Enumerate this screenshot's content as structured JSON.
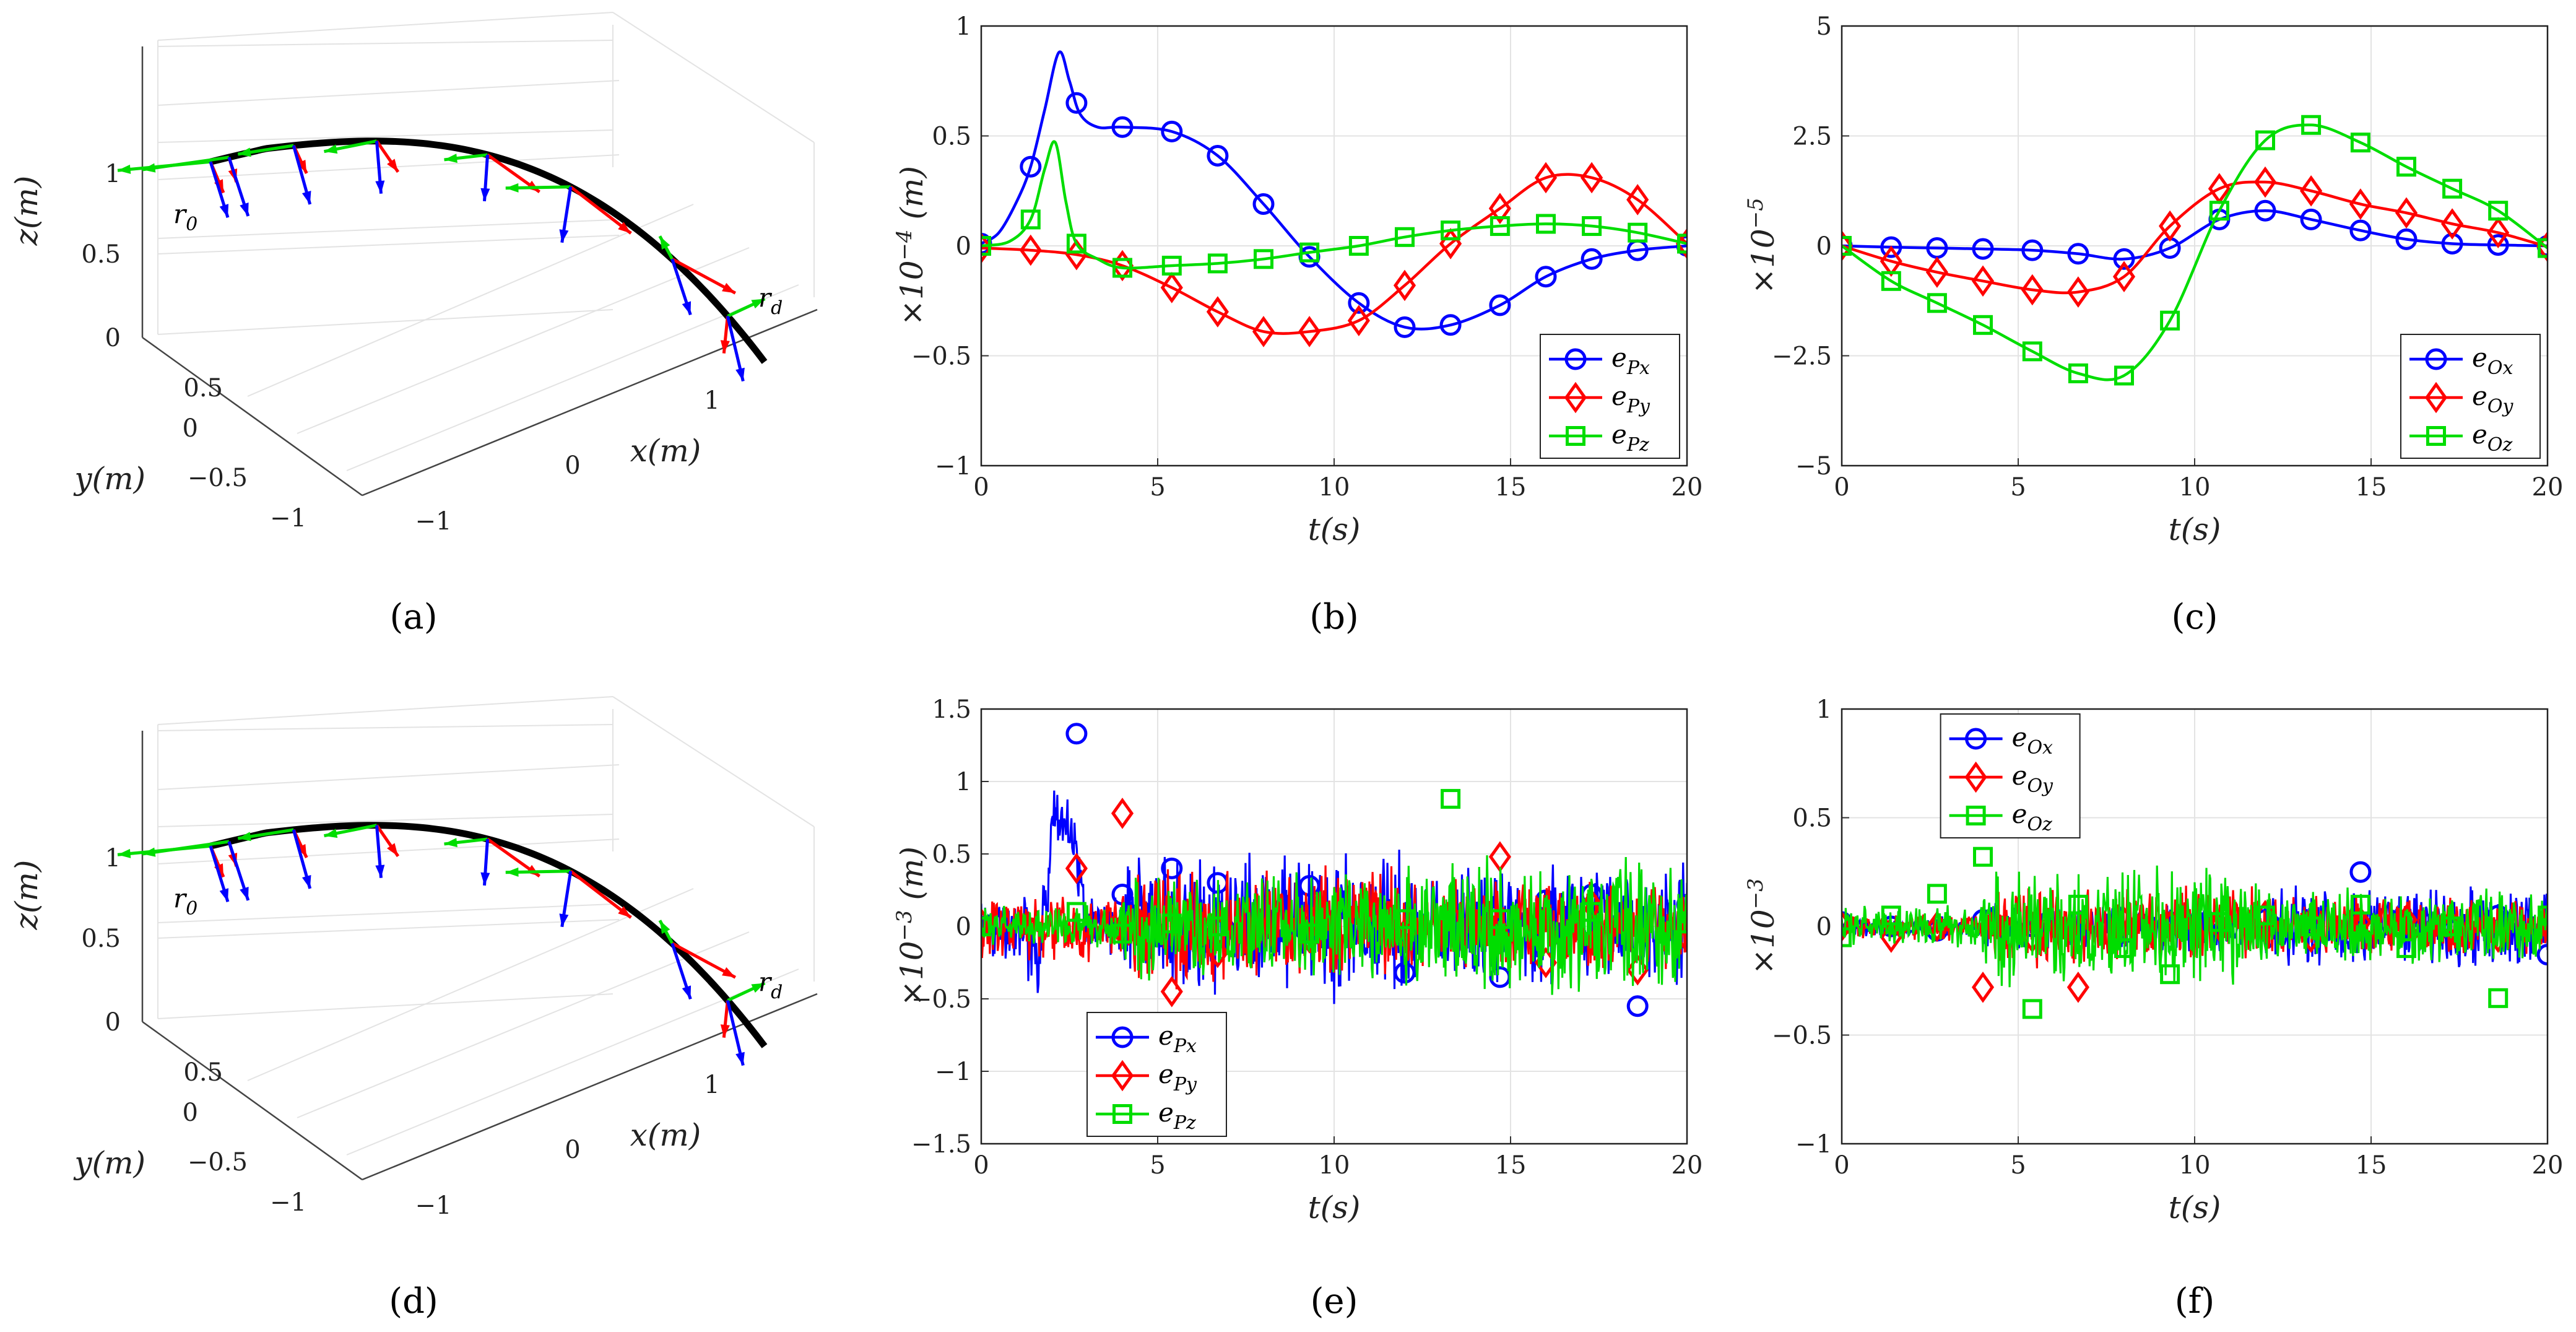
{
  "chart_data": [
    {
      "panel": "a",
      "type": "3d-trajectory",
      "caption": "(a)",
      "zlabel": "z(m)",
      "ylabel": "y(m)",
      "xlabel": "x(m)",
      "z_ticks": [
        "0",
        "0.5",
        "1"
      ],
      "y_ticks": [
        "0.5",
        "0",
        "−0.5",
        "−1"
      ],
      "x_ticks": [
        "−1",
        "0",
        "1"
      ],
      "annotations": [
        "r0",
        "rd"
      ],
      "frame_colors": [
        "#ff0000",
        "#00dd00",
        "#0000ff"
      ],
      "trajectory_color": "#000000"
    },
    {
      "panel": "b",
      "type": "line",
      "caption": "(b)",
      "ylabel": "×10^−4 (m)",
      "xlabel": "t(s)",
      "xlim": [
        0,
        20
      ],
      "ylim": [
        -1,
        1
      ],
      "x_ticks": [
        "0",
        "5",
        "10",
        "15",
        "20"
      ],
      "y_ticks": [
        "1",
        "0.5",
        "0",
        "−0.5",
        "−1"
      ],
      "legend_position": "bottom-right",
      "series": [
        {
          "name": "ePx",
          "color": "#0000ff",
          "marker": "circle",
          "x": [
            0,
            0.5,
            1,
            1.4,
            1.8,
            2.2,
            2.5,
            2.8,
            3.3,
            4,
            5.4,
            6.7,
            8,
            9.3,
            10.7,
            12,
            13.3,
            14.7,
            16,
            17.3,
            18.6,
            20
          ],
          "y": [
            0.01,
            0.06,
            0.2,
            0.36,
            0.62,
            0.88,
            0.75,
            0.6,
            0.54,
            0.54,
            0.52,
            0.41,
            0.19,
            -0.05,
            -0.26,
            -0.37,
            -0.36,
            -0.27,
            -0.14,
            -0.06,
            -0.02,
            0
          ],
          "markers_x": [
            0,
            1.4,
            2.7,
            4,
            5.4,
            6.7,
            8,
            9.3,
            10.7,
            12,
            13.3,
            14.7,
            16,
            17.3,
            18.6,
            20
          ]
        },
        {
          "name": "ePy",
          "color": "#ff0000",
          "marker": "diamond",
          "x": [
            0,
            1.4,
            2.7,
            4,
            5.4,
            6.7,
            8,
            9.3,
            10.7,
            12,
            13.3,
            14.7,
            16,
            17.3,
            18.6,
            20
          ],
          "y": [
            -0.01,
            -0.02,
            -0.04,
            -0.09,
            -0.19,
            -0.3,
            -0.39,
            -0.39,
            -0.34,
            -0.18,
            0.01,
            0.17,
            0.31,
            0.31,
            0.21,
            0.01
          ],
          "markers_x": [
            0,
            1.4,
            2.7,
            4,
            5.4,
            6.7,
            8,
            9.3,
            10.7,
            12,
            13.3,
            14.7,
            16,
            17.3,
            18.6,
            20
          ]
        },
        {
          "name": "ePz",
          "color": "#00dd00",
          "marker": "square",
          "x": [
            0,
            0.8,
            1.4,
            1.8,
            2.1,
            2.4,
            2.7,
            3.3,
            4,
            5.4,
            6.7,
            8,
            9.3,
            10.7,
            12,
            13.3,
            14.7,
            16,
            17.3,
            18.6,
            20
          ],
          "y": [
            0,
            0.02,
            0.12,
            0.35,
            0.47,
            0.2,
            0.01,
            -0.06,
            -0.1,
            -0.09,
            -0.08,
            -0.06,
            -0.03,
            0,
            0.04,
            0.07,
            0.09,
            0.1,
            0.09,
            0.06,
            0.01
          ],
          "markers_x": [
            0,
            1.4,
            2.7,
            4,
            5.4,
            6.7,
            8,
            9.3,
            10.7,
            12,
            13.3,
            14.7,
            16,
            17.3,
            18.6,
            20
          ]
        }
      ]
    },
    {
      "panel": "c",
      "type": "line",
      "caption": "(c)",
      "ylabel": "×10^−5",
      "xlabel": "t(s)",
      "xlim": [
        0,
        20
      ],
      "ylim": [
        -5,
        5
      ],
      "x_ticks": [
        "0",
        "5",
        "10",
        "15",
        "20"
      ],
      "y_ticks": [
        "5",
        "2.5",
        "0",
        "−2.5",
        "−5"
      ],
      "legend_position": "bottom-right",
      "series": [
        {
          "name": "eOx",
          "color": "#0000ff",
          "marker": "circle",
          "x": [
            0,
            1.4,
            2.7,
            4,
            5.4,
            6.7,
            8,
            9.3,
            10.7,
            12,
            13.3,
            14.7,
            16,
            17.3,
            18.6,
            20
          ],
          "y": [
            0,
            -0.03,
            -0.05,
            -0.07,
            -0.1,
            -0.18,
            -0.3,
            -0.05,
            0.6,
            0.8,
            0.6,
            0.35,
            0.15,
            0.05,
            0.02,
            0
          ],
          "markers_x": [
            0,
            1.4,
            2.7,
            4,
            5.4,
            6.7,
            8,
            9.3,
            10.7,
            12,
            13.3,
            14.7,
            16,
            17.3,
            18.6,
            20
          ]
        },
        {
          "name": "eOy",
          "color": "#ff0000",
          "marker": "diamond",
          "x": [
            0,
            1.4,
            2.7,
            4,
            5.4,
            6.7,
            8,
            9.3,
            10.7,
            12,
            13.3,
            14.7,
            16,
            17.3,
            18.6,
            20
          ],
          "y": [
            0,
            -0.35,
            -0.6,
            -0.8,
            -1.0,
            -1.05,
            -0.7,
            0.45,
            1.3,
            1.45,
            1.25,
            0.95,
            0.75,
            0.5,
            0.3,
            -0.02
          ],
          "markers_x": [
            0,
            1.4,
            2.7,
            4,
            5.4,
            6.7,
            8,
            9.3,
            10.7,
            12,
            13.3,
            14.7,
            16,
            17.3,
            18.6,
            20
          ]
        },
        {
          "name": "eOz",
          "color": "#00dd00",
          "marker": "square",
          "x": [
            0,
            1.4,
            2.7,
            4,
            5.4,
            6.7,
            8,
            9.3,
            10.7,
            12,
            13.3,
            14.7,
            16,
            17.3,
            18.6,
            20
          ],
          "y": [
            0,
            -0.8,
            -1.3,
            -1.8,
            -2.4,
            -2.9,
            -2.95,
            -1.7,
            0.8,
            2.4,
            2.75,
            2.35,
            1.8,
            1.3,
            0.8,
            -0.05
          ],
          "markers_x": [
            0,
            1.4,
            2.7,
            4,
            5.4,
            6.7,
            8,
            9.3,
            10.7,
            12,
            13.3,
            14.7,
            16,
            17.3,
            18.6,
            20
          ]
        }
      ]
    },
    {
      "panel": "d",
      "type": "3d-trajectory",
      "caption": "(d)",
      "zlabel": "z(m)",
      "ylabel": "y(m)",
      "xlabel": "x(m)",
      "z_ticks": [
        "0",
        "0.5",
        "1"
      ],
      "y_ticks": [
        "0.5",
        "0",
        "−0.5",
        "−1"
      ],
      "x_ticks": [
        "−1",
        "0",
        "1"
      ],
      "annotations": [
        "r0",
        "rd"
      ],
      "frame_colors": [
        "#ff0000",
        "#00dd00",
        "#0000ff"
      ],
      "trajectory_color": "#000000"
    },
    {
      "panel": "e",
      "type": "line",
      "caption": "(e)",
      "ylabel": "×10^−3 (m)",
      "xlabel": "t(s)",
      "xlim": [
        0,
        20
      ],
      "ylim": [
        -1.5,
        1.5
      ],
      "x_ticks": [
        "0",
        "5",
        "10",
        "15",
        "20"
      ],
      "y_ticks": [
        "1.5",
        "1",
        "0.5",
        "0",
        "−0.5",
        "−1",
        "−1.5"
      ],
      "legend_position": "bottom-left",
      "noisy": true,
      "series": [
        {
          "name": "ePx",
          "color": "#0000ff",
          "marker": "circle",
          "amp": [
            0.25,
            0.55,
            0.45
          ],
          "markers": [
            [
              0,
              0
            ],
            [
              2.7,
              1.33
            ],
            [
              4,
              0.22
            ],
            [
              5.4,
              0.4
            ],
            [
              6.7,
              0.3
            ],
            [
              9.3,
              0.28
            ],
            [
              12,
              -0.32
            ],
            [
              14.7,
              -0.35
            ],
            [
              16,
              0.18
            ],
            [
              17.3,
              0.22
            ],
            [
              18.6,
              -0.55
            ],
            [
              20,
              0.15
            ]
          ]
        },
        {
          "name": "ePy",
          "color": "#ff0000",
          "marker": "diamond",
          "amp": [
            0.3,
            0.45,
            0.35
          ],
          "markers": [
            [
              0,
              0.02
            ],
            [
              2.7,
              0.4
            ],
            [
              4,
              0.78
            ],
            [
              5.4,
              -0.45
            ],
            [
              6.7,
              -0.18
            ],
            [
              9.3,
              -0.08
            ],
            [
              12,
              -0.05
            ],
            [
              14.7,
              0.48
            ],
            [
              16,
              -0.25
            ],
            [
              17.3,
              0.15
            ],
            [
              18.6,
              -0.3
            ],
            [
              20,
              -0.08
            ]
          ]
        },
        {
          "name": "ePz",
          "color": "#00dd00",
          "marker": "square",
          "amp": [
            0.15,
            0.4,
            0.55
          ],
          "markers": [
            [
              0,
              0
            ],
            [
              2.7,
              0.1
            ],
            [
              4,
              -0.05
            ],
            [
              5.4,
              0.02
            ],
            [
              6.7,
              0.0
            ],
            [
              9.3,
              -0.05
            ],
            [
              12,
              0.05
            ],
            [
              13.3,
              0.88
            ],
            [
              14.7,
              0.05
            ],
            [
              17.3,
              0.1
            ],
            [
              20,
              0.02
            ]
          ]
        }
      ]
    },
    {
      "panel": "f",
      "type": "line",
      "caption": "(f)",
      "ylabel": "×10^−3",
      "xlabel": "t(s)",
      "xlim": [
        0,
        20
      ],
      "ylim": [
        -1,
        1
      ],
      "x_ticks": [
        "0",
        "5",
        "10",
        "15",
        "20"
      ],
      "y_ticks": [
        "1",
        "0.5",
        "0",
        "−0.5",
        "−1"
      ],
      "legend_position": "top-left",
      "noisy": true,
      "series": [
        {
          "name": "eOx",
          "color": "#0000ff",
          "marker": "circle",
          "amp": [
            0.05,
            0.12,
            0.2
          ],
          "markers": [
            [
              0,
              0.02
            ],
            [
              1.4,
              0.0
            ],
            [
              2.7,
              -0.02
            ],
            [
              4,
              0.03
            ],
            [
              5.4,
              0.0
            ],
            [
              6.7,
              0.02
            ],
            [
              8,
              -0.03
            ],
            [
              9.3,
              0.02
            ],
            [
              10.7,
              0.0
            ],
            [
              12,
              0.03
            ],
            [
              13.3,
              0.01
            ],
            [
              14.7,
              0.25
            ],
            [
              16,
              0.02
            ],
            [
              17.3,
              -0.02
            ],
            [
              18.6,
              0.05
            ],
            [
              20,
              -0.13
            ]
          ]
        },
        {
          "name": "eOy",
          "color": "#ff0000",
          "marker": "diamond",
          "amp": [
            0.08,
            0.2,
            0.15
          ],
          "markers": [
            [
              0,
              0
            ],
            [
              1.4,
              -0.05
            ],
            [
              2.7,
              0.0
            ],
            [
              4,
              -0.28
            ],
            [
              5.4,
              -0.05
            ],
            [
              6.7,
              -0.28
            ],
            [
              8,
              0.02
            ],
            [
              9.3,
              0.0
            ],
            [
              10.7,
              0.0
            ],
            [
              12,
              0.05
            ],
            [
              13.3,
              -0.05
            ],
            [
              14.7,
              0.02
            ],
            [
              16,
              0.03
            ],
            [
              17.3,
              0.0
            ],
            [
              18.6,
              -0.05
            ],
            [
              20,
              0.0
            ]
          ]
        },
        {
          "name": "eOz",
          "color": "#00dd00",
          "marker": "square",
          "amp": [
            0.1,
            0.3,
            0.2
          ],
          "markers": [
            [
              0,
              -0.05
            ],
            [
              1.4,
              0.05
            ],
            [
              2.7,
              0.15
            ],
            [
              4,
              0.32
            ],
            [
              5.4,
              -0.38
            ],
            [
              6.7,
              0.1
            ],
            [
              8,
              -0.1
            ],
            [
              9.3,
              -0.22
            ],
            [
              10.7,
              0.02
            ],
            [
              12,
              0.05
            ],
            [
              13.3,
              0.0
            ],
            [
              14.7,
              0.1
            ],
            [
              16,
              -0.1
            ],
            [
              17.3,
              0.0
            ],
            [
              18.6,
              -0.33
            ],
            [
              20,
              0.05
            ]
          ]
        }
      ]
    }
  ]
}
